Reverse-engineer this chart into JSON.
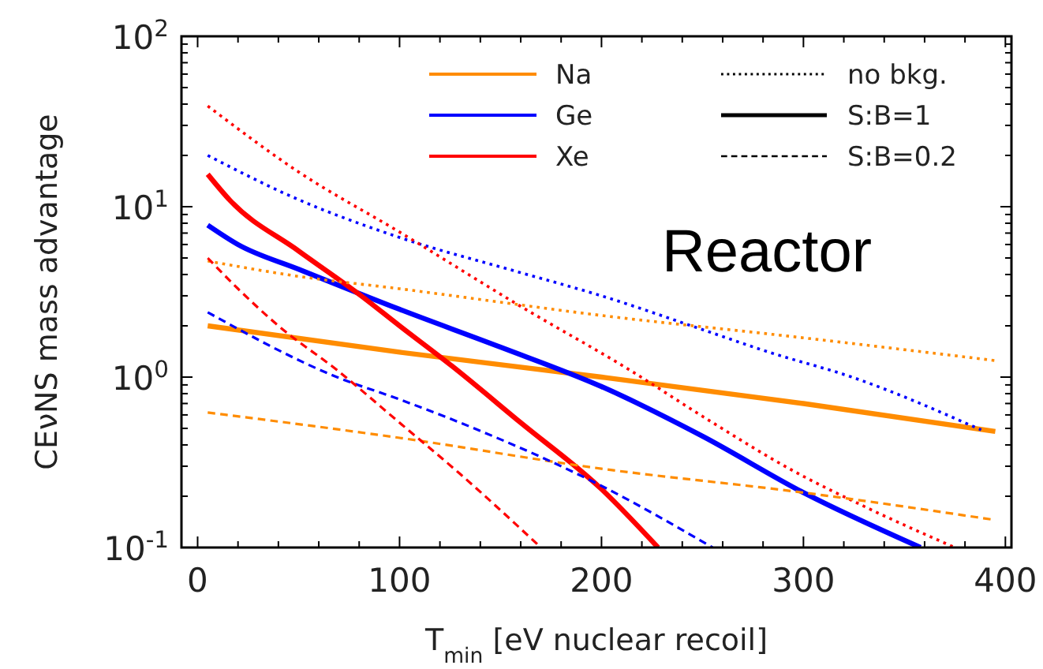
{
  "chart_data": {
    "type": "line",
    "xlabel": "T$_{min}$ [eV nuclear recoil]",
    "ylabel": "CEνNS mass advantage",
    "annotations": [
      "Reactor"
    ],
    "log": "y",
    "grid": false,
    "legend": "top right",
    "xlim": [
      -8,
      403
    ],
    "ylim": [
      0.1,
      100
    ],
    "xticks": [
      0,
      {
        "value": 20,
        "label": null
      },
      {
        "value": 40,
        "label": null
      },
      {
        "value": 60,
        "label": null
      },
      {
        "value": 80,
        "label": null
      },
      100,
      {
        "value": 120,
        "label": null
      },
      {
        "value": 140,
        "label": null
      },
      {
        "value": 160,
        "label": null
      },
      {
        "value": 180,
        "label": null
      },
      200,
      {
        "value": 220,
        "label": null
      },
      {
        "value": 240,
        "label": null
      },
      {
        "value": 260,
        "label": null
      },
      {
        "value": 280,
        "label": null
      },
      300,
      {
        "value": 320,
        "label": null
      },
      {
        "value": 340,
        "label": null
      },
      {
        "value": 360,
        "label": null
      },
      {
        "value": 380,
        "label": null
      },
      400
    ],
    "yticks": [
      {
        "value": 0.1,
        "label": "10$^{-1}$"
      },
      {
        "value": 0.2,
        "label": null
      },
      {
        "value": 0.3,
        "label": null
      },
      {
        "value": 0.4,
        "label": null
      },
      {
        "value": 0.5,
        "label": null
      },
      {
        "value": 0.6,
        "label": null
      },
      {
        "value": 0.7,
        "label": null
      },
      {
        "value": 0.8,
        "label": null
      },
      {
        "value": 0.9,
        "label": null
      },
      {
        "value": 1,
        "label": "10$^{0}$"
      },
      {
        "value": 2,
        "label": null
      },
      {
        "value": 3,
        "label": null
      },
      {
        "value": 4,
        "label": null
      },
      {
        "value": 5,
        "label": null
      },
      {
        "value": 6,
        "label": null
      },
      {
        "value": 7,
        "label": null
      },
      {
        "value": 8,
        "label": null
      },
      {
        "value": 9,
        "label": null
      },
      {
        "value": 10,
        "label": "10$^{1}$"
      },
      {
        "value": 20,
        "label": null
      },
      {
        "value": 30,
        "label": null
      },
      {
        "value": 40,
        "label": null
      },
      {
        "value": 50,
        "label": null
      },
      {
        "value": 60,
        "label": null
      },
      {
        "value": 70,
        "label": null
      },
      {
        "value": 80,
        "label": null
      },
      {
        "value": 90,
        "label": null
      },
      {
        "value": 100,
        "label": "10$^{2}$"
      }
    ],
    "series": [
      {
        "name": "Na",
        "color": "#ff8c00",
        "line_style": "solid",
        "x": [
          5,
          100,
          200,
          300,
          395
        ],
        "values": [
          2.0,
          1.4,
          1.0,
          0.7,
          0.48
        ]
      },
      {
        "name": "Ge",
        "color": "#0000ff",
        "line_style": "solid",
        "x": [
          5,
          20,
          50,
          100,
          150,
          200,
          250,
          300,
          358
        ],
        "values": [
          7.8,
          6.0,
          4.3,
          2.5,
          1.5,
          0.88,
          0.45,
          0.21,
          0.1
        ]
      },
      {
        "name": "Xe",
        "color": "#ff0000",
        "line_style": "solid",
        "x": [
          5,
          16,
          50,
          81,
          100,
          126,
          160,
          200,
          228
        ],
        "values": [
          15.5,
          10.9,
          5.5,
          3.0,
          2.0,
          1.16,
          0.54,
          0.22,
          0.1
        ]
      },
      {
        "color": "#ff8c00",
        "line_style": "dotted",
        "x": [
          5,
          50,
          100,
          200,
          300,
          395
        ],
        "values": [
          4.8,
          3.9,
          3.3,
          2.3,
          1.7,
          1.25
        ]
      },
      {
        "color": "#0000ff",
        "line_style": "dotted",
        "x": [
          5,
          50,
          100,
          160,
          200,
          250,
          283,
          324,
          388
        ],
        "values": [
          20,
          11,
          6.6,
          4.1,
          3.0,
          1.9,
          1.4,
          1.0,
          0.49
        ]
      },
      {
        "color": "#ff0000",
        "line_style": "dotted",
        "x": [
          5,
          50,
          100,
          160,
          214,
          254,
          293,
          332,
          375
        ],
        "values": [
          39,
          16,
          7.1,
          2.6,
          1.1,
          0.55,
          0.29,
          0.17,
          0.1
        ]
      },
      {
        "color": "#ff8c00",
        "line_style": "dashed",
        "x": [
          5,
          100,
          200,
          300,
          395
        ],
        "values": [
          0.62,
          0.44,
          0.29,
          0.21,
          0.145
        ]
      },
      {
        "color": "#0000ff",
        "line_style": "dashed",
        "x": [
          5,
          69,
          100,
          137,
          200,
          255
        ],
        "values": [
          2.4,
          1.0,
          0.74,
          0.5,
          0.23,
          0.1
        ]
      },
      {
        "color": "#ff0000",
        "line_style": "dashed",
        "x": [
          5,
          20,
          40,
          69,
          100,
          130,
          170
        ],
        "values": [
          5.0,
          3.3,
          2.0,
          1.1,
          0.54,
          0.27,
          0.1
        ]
      },
      {
        "name": "no bkg.",
        "color": "#000000",
        "line_style": "dotted"
      },
      {
        "name": "S:B=1",
        "color": "#000000",
        "line_style": "solid"
      },
      {
        "name": "S:B=0.2",
        "color": "#000000",
        "line_style": "dashed"
      }
    ]
  }
}
